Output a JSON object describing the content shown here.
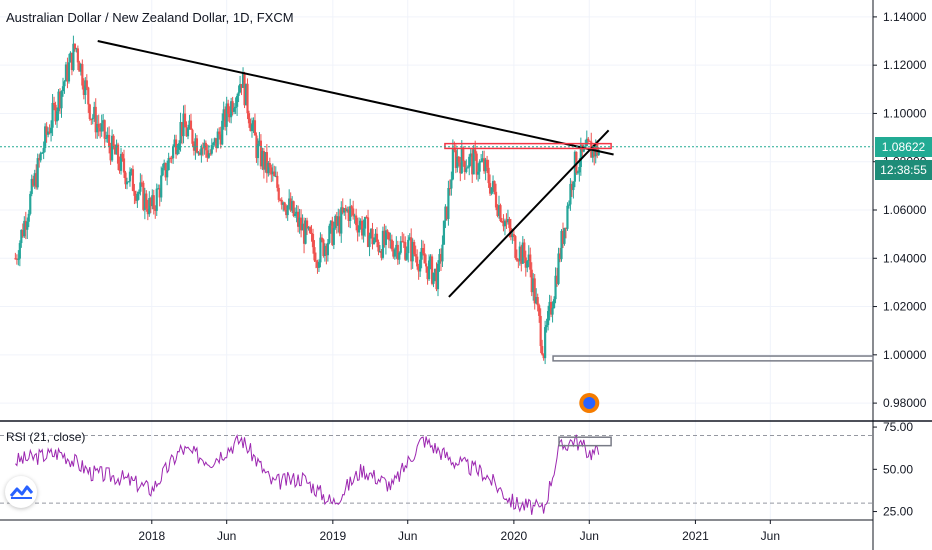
{
  "chart_data": [
    {
      "type": "candlestick",
      "title": "Australian Dollar / New Zealand Dollar, 1D, FXCM",
      "y_ticks": [
        "1.14000",
        "1.12000",
        "1.10000",
        "1.08000",
        "1.06000",
        "1.04000",
        "1.02000",
        "1.00000",
        "0.98000"
      ],
      "x_ticks": [
        "2018",
        "Jun",
        "2019",
        "Jun",
        "2020",
        "Jun",
        "2021",
        "Jun"
      ],
      "ylim": [
        0.973,
        1.147
      ],
      "last_price": "1.08622",
      "countdown": "12:38:55",
      "series": [
        {
          "name": "price",
          "x": [
            "2017-04",
            "2017-06",
            "2017-08",
            "2017-09",
            "2017-11",
            "2018-01",
            "2018-03",
            "2018-05",
            "2018-07",
            "2018-08",
            "2018-10",
            "2018-12",
            "2019-02",
            "2019-04",
            "2019-06",
            "2019-08",
            "2019-09",
            "2019-11",
            "2020-01",
            "2020-02",
            "2020-03",
            "2020-04",
            "2020-05",
            "2020-06"
          ],
          "values": [
            1.04,
            1.09,
            1.128,
            1.1,
            1.078,
            1.06,
            1.095,
            1.083,
            1.115,
            1.085,
            1.062,
            1.042,
            1.06,
            1.046,
            1.045,
            1.032,
            1.082,
            1.078,
            1.046,
            1.038,
            1.002,
            1.04,
            1.078,
            1.085
          ]
        }
      ],
      "annotations": [
        {
          "type": "trendline",
          "points": [
            [
              "2017-09-14",
              1.13
            ],
            [
              "2020-07-20",
              1.083
            ]
          ]
        },
        {
          "type": "trendline",
          "points": [
            [
              "2019-08-23",
              1.024
            ],
            [
              "2020-07-10",
              1.093
            ]
          ]
        },
        {
          "type": "zone",
          "x": [
            "2019-08-15",
            "2020-07-15"
          ],
          "y": [
            1.0855,
            1.0875
          ],
          "color": "#f23645"
        },
        {
          "type": "zone",
          "x": [
            "2020-03-20",
            "2021-12-31"
          ],
          "y": [
            0.9975,
            0.9995
          ],
          "color": "#787b86"
        },
        {
          "type": "hline",
          "y": 1.08622,
          "color": "#22ab94"
        }
      ]
    },
    {
      "type": "line",
      "title": "RSI (21, close)",
      "y_ticks": [
        "75.00",
        "50.00",
        "25.00"
      ],
      "ylim": [
        20,
        78
      ],
      "bands": [
        70,
        30
      ],
      "series": [
        {
          "name": "RSI",
          "x": [
            "2017-04",
            "2017-07",
            "2017-09",
            "2017-11",
            "2018-01",
            "2018-03",
            "2018-05",
            "2018-07",
            "2018-09",
            "2018-11",
            "2019-01",
            "2019-03",
            "2019-05",
            "2019-07",
            "2019-09",
            "2019-11",
            "2020-01",
            "2020-03",
            "2020-04",
            "2020-05",
            "2020-06"
          ],
          "values": [
            55,
            60,
            48,
            45,
            38,
            62,
            55,
            68,
            42,
            45,
            30,
            50,
            40,
            68,
            55,
            48,
            30,
            26,
            62,
            68,
            60
          ]
        }
      ],
      "annotations": [
        {
          "type": "zone",
          "x": [
            "2020-04-01",
            "2020-07-15"
          ],
          "y": [
            64,
            69
          ],
          "color": "#787b86"
        }
      ]
    }
  ],
  "colors": {
    "up": "#26a69a",
    "down": "#ef5350",
    "rsi": "#9c27b0",
    "price_tag": "#22ab94"
  }
}
